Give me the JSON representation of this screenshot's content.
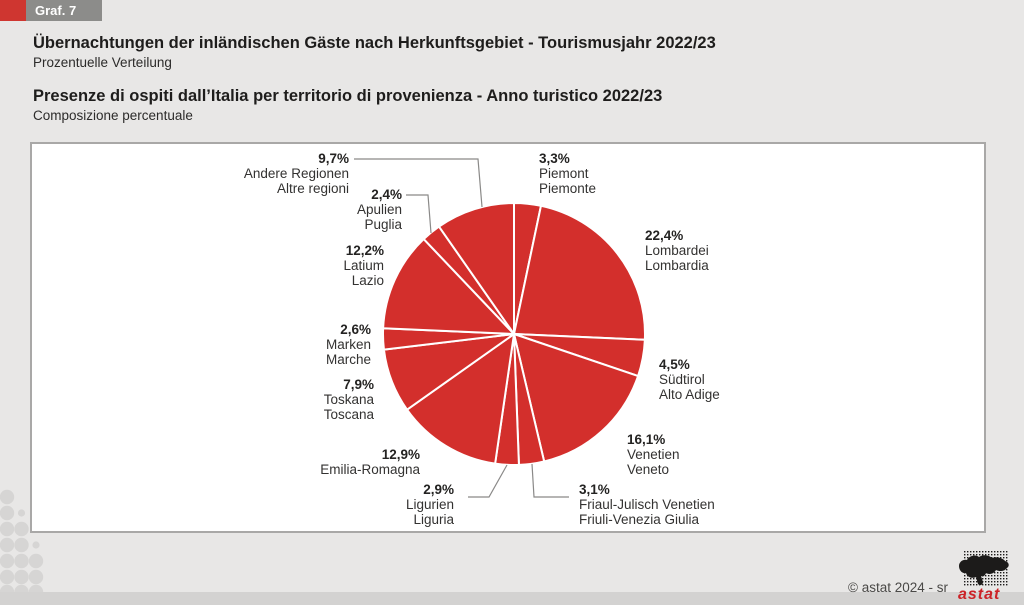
{
  "page": {
    "graf_label": "Graf. 7",
    "title_de": "Übernachtungen der inländischen Gäste nach Herkunftsgebiet - Tourismusjahr 2022/23",
    "subtitle_de": "Prozentuelle Verteilung",
    "title_it": "Presenze di ospiti dall’Italia per territorio di provenienza - Anno turistico 2022/23",
    "subtitle_it": "Composizione percentuale",
    "copyright": "©  astat 2024 - sr",
    "logo_text": "astat"
  },
  "colors": {
    "pie_red": "#d32f2c",
    "accent_red": "#cf3630",
    "badge_gray": "#8c8c8a",
    "page_bg": "#e8e7e6",
    "strip_gray": "#d3d2d1",
    "chart_border": "#a9a8a7",
    "leader_line": "#8a8988",
    "dots_gray": "#d6d5d4"
  },
  "chart_data": {
    "type": "pie",
    "title": "Übernachtungen der inländischen Gäste nach Herkunftsgebiet - Tourismusjahr 2022/23",
    "subtitle": "Prozentuelle Verteilung / Composizione percentuale",
    "unit": "percent",
    "start_angle_deg_from_top": 0,
    "direction": "clockwise",
    "total": 100.0,
    "slices": [
      {
        "label_de": "Piemont",
        "label_it": "Piemonte",
        "value": 3.3,
        "display": "3,3%"
      },
      {
        "label_de": "Lombardei",
        "label_it": "Lombardia",
        "value": 22.4,
        "display": "22,4%"
      },
      {
        "label_de": "Südtirol",
        "label_it": "Alto Adige",
        "value": 4.5,
        "display": "4,5%"
      },
      {
        "label_de": "Venetien",
        "label_it": "Veneto",
        "value": 16.1,
        "display": "16,1%"
      },
      {
        "label_de": "Friaul-Julisch Venetien",
        "label_it": "Friuli-Venezia Giulia",
        "value": 3.1,
        "display": "3,1%"
      },
      {
        "label_de": "Ligurien",
        "label_it": "Liguria",
        "value": 2.9,
        "display": "2,9%"
      },
      {
        "label_de": "Emilia-Romagna",
        "label_it": "",
        "value": 12.9,
        "display": "12,9%"
      },
      {
        "label_de": "Toskana",
        "label_it": "Toscana",
        "value": 7.9,
        "display": "7,9%"
      },
      {
        "label_de": "Marken",
        "label_it": "Marche",
        "value": 2.6,
        "display": "2,6%"
      },
      {
        "label_de": "Latium",
        "label_it": "Lazio",
        "value": 12.2,
        "display": "12,2%"
      },
      {
        "label_de": "Apulien",
        "label_it": "Puglia",
        "value": 2.4,
        "display": "2,4%"
      },
      {
        "label_de": "Andere Regionen",
        "label_it": "Altre regioni",
        "value": 9.7,
        "display": "9,7%"
      }
    ]
  }
}
